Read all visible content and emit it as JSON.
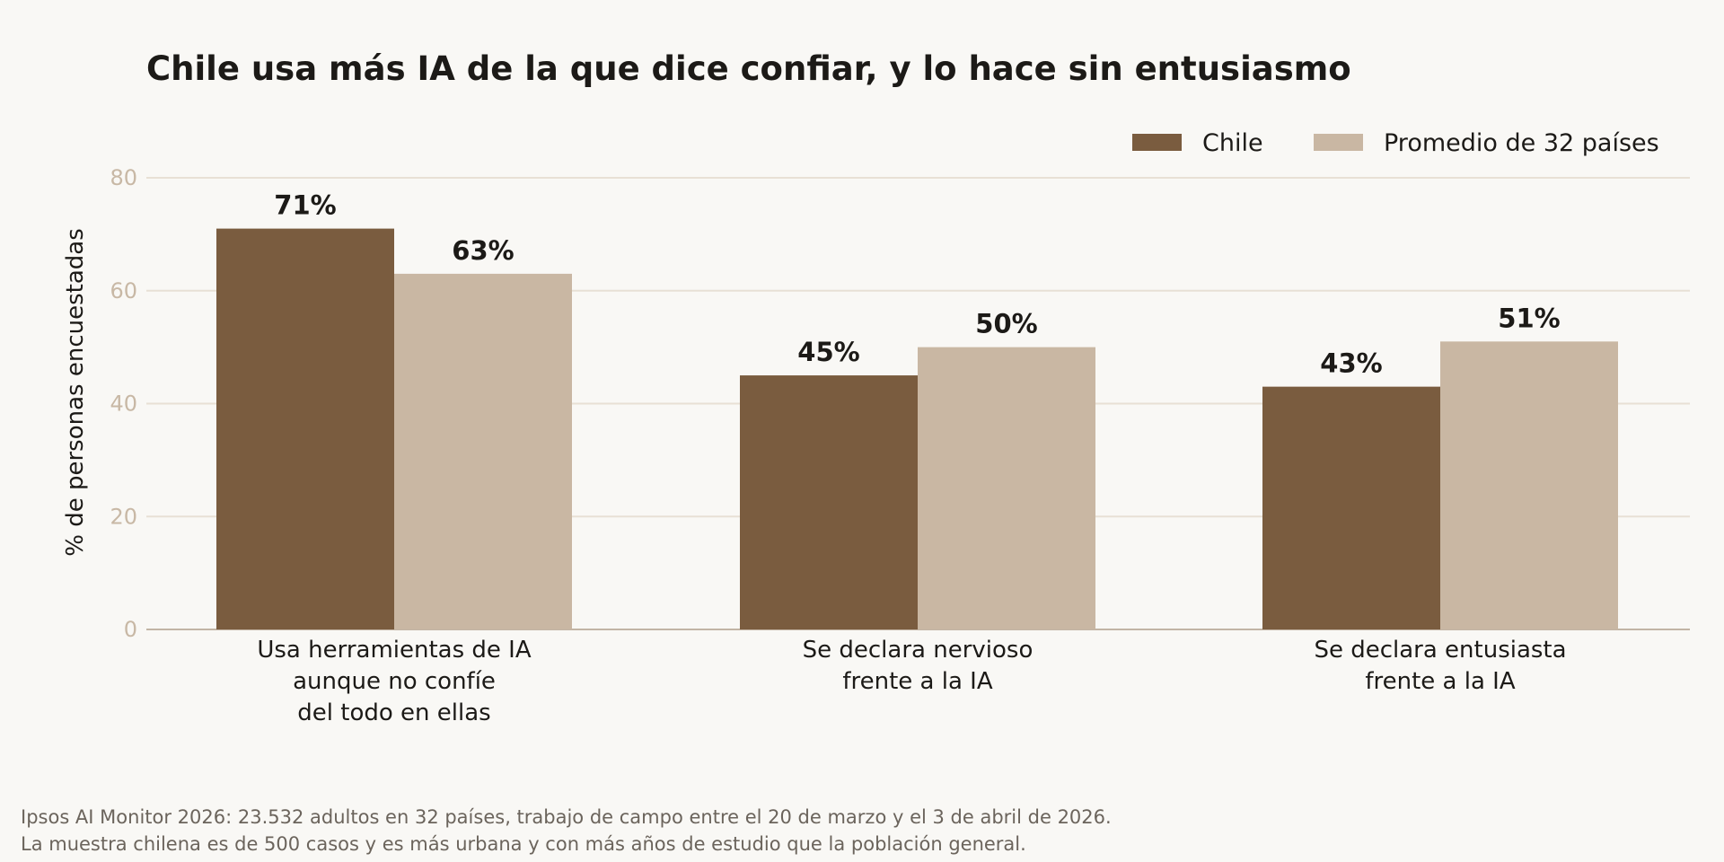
{
  "chart_data": {
    "type": "bar",
    "title": "Chile usa más IA de la que dice confiar, y lo hace sin entusiasmo",
    "ylabel": "% de personas encuestadas",
    "xlabel": "",
    "ylim": [
      0,
      80
    ],
    "yticks": [
      "0",
      "20",
      "40",
      "60",
      "80"
    ],
    "grid": true,
    "legend_position": "top-right",
    "categories": [
      [
        "Usa herramientas de IA",
        "aunque no confíe",
        "del todo en ellas"
      ],
      [
        "Se declara nervioso",
        "frente a la IA"
      ],
      [
        "Se declara entusiasta",
        "frente a la IA"
      ]
    ],
    "series": [
      {
        "name": "Chile",
        "color": "#7a5c3f",
        "values": [
          71,
          45,
          43
        ],
        "labels": [
          "71%",
          "45%",
          "43%"
        ]
      },
      {
        "name": "Promedio de 32 países",
        "color": "#c9b7a3",
        "values": [
          63,
          50,
          51
        ],
        "labels": [
          "63%",
          "50%",
          "51%"
        ]
      }
    ],
    "colors": {
      "grid": "#e8e0d5",
      "axis": "#c2b5a5",
      "text": "#1c1a17",
      "ticks": "#c8b8a5"
    }
  },
  "footnote": {
    "line1": "Ipsos AI Monitor 2026: 23.532 adultos en 32 países, trabajo de campo entre el 20 de marzo y el 3 de abril de 2026.",
    "line2": "La muestra chilena es de 500 casos y es más urbana y con más años de estudio que la población general."
  }
}
